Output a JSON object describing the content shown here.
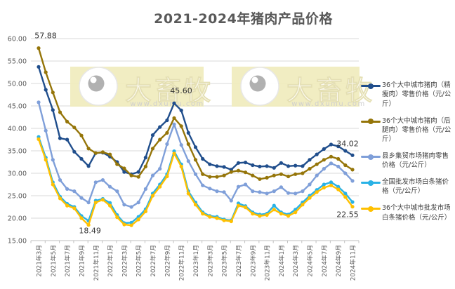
{
  "title": "2021-2024年猪肉产品价格",
  "watermark": {
    "brand": "大畜牧",
    "url_text": "www.dxumu.com"
  },
  "colors": {
    "grid": "#D9D9D9",
    "axis": "#BFBFBF",
    "tick_label": "#595959",
    "annotation": "#333333",
    "watermark_bg": "#F1ECBE",
    "watermark_text": "#FBF9EE",
    "watermark_url": "#CCCCCC"
  },
  "chart_data": {
    "type": "line",
    "title": "2021-2024年猪肉产品价格",
    "xlabel": "",
    "ylabel": "",
    "ylim": [
      15,
      60
    ],
    "y_tick_step": 5,
    "grid": true,
    "legend_position": "right",
    "y_tick_labels": [
      "60.00",
      "55.00",
      "50.00",
      "45.00",
      "40.00",
      "35.00",
      "30.00",
      "25.00",
      "20.00",
      "15.00"
    ],
    "x_tick_labels": [
      "2021年3月",
      "2021年5月",
      "2021年7月",
      "2021年9月",
      "2021年11月",
      "2022年1月",
      "2022年3月",
      "2022年5月",
      "2022年7月",
      "2022年9月",
      "2022年11月",
      "2023年1月",
      "2023年3月",
      "2023年5月",
      "2023年7月",
      "2023年9月",
      "2023年11月",
      "2024年1月",
      "2024年3月",
      "2024年5月",
      "2024年7月",
      "2024年9月",
      "2024年11月"
    ],
    "categories": [
      "2021年3月",
      "2021年4月",
      "2021年5月",
      "2021年6月",
      "2021年7月",
      "2021年8月",
      "2021年9月",
      "2021年10月",
      "2021年11月",
      "2021年12月",
      "2022年1月",
      "2022年2月",
      "2022年3月",
      "2022年4月",
      "2022年5月",
      "2022年6月",
      "2022年7月",
      "2022年8月",
      "2022年9月",
      "2022年10月",
      "2022年11月",
      "2022年12月",
      "2023年1月",
      "2023年2月",
      "2023年3月",
      "2023年4月",
      "2023年5月",
      "2023年6月",
      "2023年7月",
      "2023年8月",
      "2023年9月",
      "2023年10月",
      "2023年11月",
      "2023年12月",
      "2024年1月",
      "2024年2月",
      "2024年3月",
      "2024年4月",
      "2024年5月",
      "2024年6月",
      "2024年7月",
      "2024年8月",
      "2024年9月",
      "2024年10月",
      "2024年11月"
    ],
    "series": [
      {
        "name": "36个大中城市猪肉（精瘦肉）零售价格（元/公斤）",
        "color": "#204E8C",
        "values": [
          53.7,
          48.6,
          44.1,
          37.8,
          37.5,
          34.8,
          33.2,
          31.6,
          34.5,
          34.6,
          33.7,
          32.5,
          30.3,
          29.8,
          30.3,
          33.5,
          38.5,
          40.3,
          41.8,
          45.6,
          44.0,
          39.0,
          35.8,
          33.2,
          32.0,
          31.6,
          31.4,
          30.8,
          32.3,
          32.4,
          31.8,
          31.5,
          31.6,
          31.2,
          32.3,
          31.6,
          31.7,
          31.6,
          33.0,
          34.2,
          35.4,
          36.4,
          36.0,
          35.0,
          34.02
        ]
      },
      {
        "name": "36个大中城市猪肉（后腿肉）零售价格（元/公斤）",
        "color": "#957509",
        "values": [
          57.88,
          52.5,
          48.0,
          43.6,
          41.5,
          40.2,
          38.4,
          35.5,
          34.5,
          34.7,
          34.2,
          32.0,
          31.1,
          29.5,
          29.2,
          31.5,
          35.5,
          37.5,
          39.0,
          42.3,
          40.5,
          36.5,
          33.0,
          29.8,
          29.2,
          29.2,
          29.5,
          30.3,
          30.6,
          30.2,
          29.5,
          28.7,
          29.0,
          29.5,
          29.8,
          29.3,
          29.8,
          30.0,
          31.0,
          32.0,
          33.0,
          33.7,
          33.2,
          31.8,
          30.8
        ]
      },
      {
        "name": "县乡集贸市场猪肉零售价格（元/公斤）",
        "color": "#7F9FD9",
        "values": [
          45.8,
          39.5,
          33.0,
          28.5,
          26.5,
          26.0,
          24.5,
          23.5,
          28.0,
          28.5,
          27.0,
          26.0,
          23.0,
          22.5,
          23.5,
          26.5,
          29.5,
          31.0,
          36.5,
          40.9,
          36.3,
          32.7,
          29.8,
          27.3,
          26.6,
          26.0,
          25.8,
          23.9,
          27.0,
          27.5,
          26.0,
          25.8,
          25.5,
          26.0,
          26.9,
          25.6,
          25.5,
          26.0,
          27.5,
          29.5,
          31.0,
          32.2,
          31.5,
          30.0,
          28.3
        ]
      },
      {
        "name": "全国批发市场白条猪价格（元/公斤）",
        "color": "#29B2E6",
        "values": [
          38.1,
          33.5,
          28.0,
          24.8,
          23.2,
          22.5,
          20.5,
          19.4,
          23.9,
          24.3,
          23.4,
          20.7,
          18.9,
          19.0,
          20.3,
          22.0,
          25.5,
          27.5,
          29.8,
          34.9,
          32.0,
          26.0,
          23.5,
          21.3,
          20.5,
          20.3,
          19.7,
          19.5,
          23.3,
          22.7,
          21.3,
          20.8,
          21.0,
          22.8,
          21.3,
          20.8,
          21.9,
          23.5,
          25.0,
          26.3,
          27.5,
          28.0,
          27.0,
          25.5,
          23.6
        ]
      },
      {
        "name": "36个大中城市批发市场白条猪价格（元/公斤）",
        "color": "#FFC000",
        "values": [
          37.6,
          33.0,
          27.5,
          24.4,
          22.8,
          22.2,
          20.0,
          18.49,
          23.5,
          24.1,
          22.8,
          20.2,
          18.6,
          18.4,
          19.7,
          21.5,
          25.0,
          27.0,
          29.3,
          34.4,
          31.5,
          25.5,
          23.0,
          21.0,
          20.3,
          20.0,
          19.5,
          19.3,
          22.8,
          22.4,
          21.0,
          20.5,
          20.7,
          21.9,
          21.0,
          20.5,
          21.3,
          23.0,
          24.5,
          25.8,
          26.8,
          27.3,
          26.4,
          24.7,
          22.55
        ]
      }
    ],
    "annotations": [
      {
        "text": "57.88",
        "series": 1,
        "point": 0,
        "placement": "above-right"
      },
      {
        "text": "45.60",
        "series": 0,
        "point": 19,
        "placement": "above-right"
      },
      {
        "text": "34.02",
        "series": 0,
        "point": 44,
        "placement": "above-left"
      },
      {
        "text": "18.49",
        "series": 4,
        "point": 7,
        "placement": "below"
      },
      {
        "text": "22.55",
        "series": 4,
        "point": 44,
        "placement": "below-left"
      }
    ]
  }
}
